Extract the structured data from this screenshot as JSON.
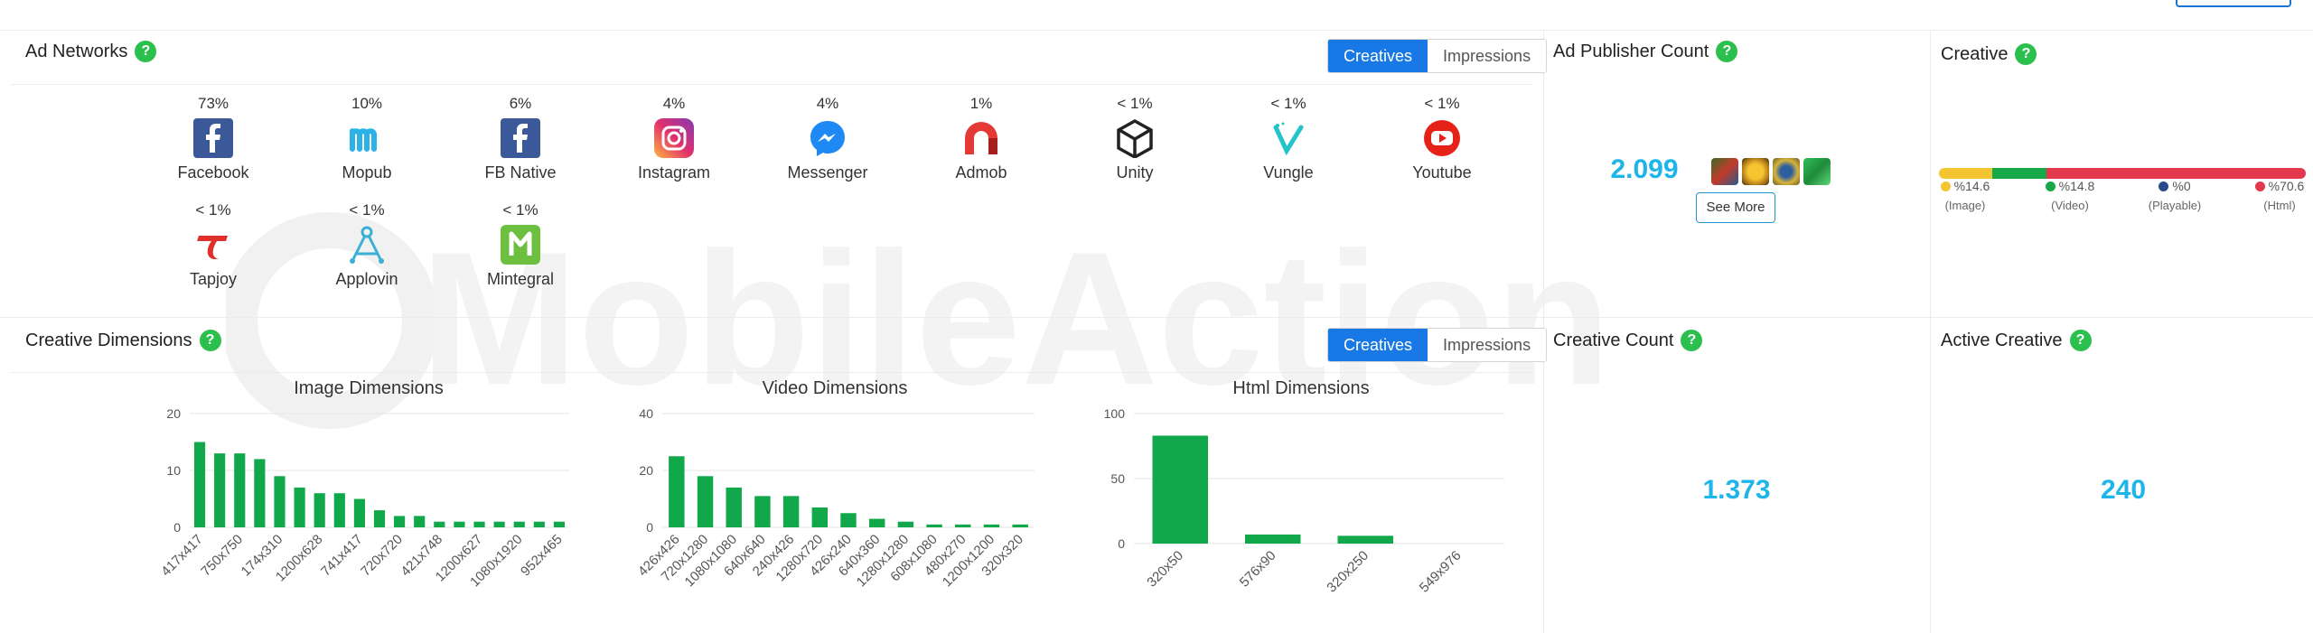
{
  "ad_networks": {
    "title": "Ad Networks",
    "help": "?",
    "toggle": {
      "creatives": "Creatives",
      "impressions": "Impressions"
    },
    "items": [
      {
        "pct": "73%",
        "label": "Facebook",
        "icon": "facebook-icon",
        "color": "#3b5998"
      },
      {
        "pct": "10%",
        "label": "Mopub",
        "icon": "mopub-icon",
        "color": "#2bb3e8"
      },
      {
        "pct": "6%",
        "label": "FB Native",
        "icon": "fb-native-icon",
        "color": "#3b5998"
      },
      {
        "pct": "4%",
        "label": "Instagram",
        "icon": "instagram-icon",
        "color": "#d6249f"
      },
      {
        "pct": "4%",
        "label": "Messenger",
        "icon": "messenger-icon",
        "color": "#1e88f5"
      },
      {
        "pct": "1%",
        "label": "Admob",
        "icon": "admob-icon",
        "color": "#e53935"
      },
      {
        "pct": "< 1%",
        "label": "Unity",
        "icon": "unity-icon",
        "color": "#222222"
      },
      {
        "pct": "< 1%",
        "label": "Vungle",
        "icon": "vungle-icon",
        "color": "#22c3c9"
      },
      {
        "pct": "< 1%",
        "label": "Youtube",
        "icon": "youtube-icon",
        "color": "#e62117"
      },
      {
        "pct": "< 1%",
        "label": "Tapjoy",
        "icon": "tapjoy-icon",
        "color": "#e0302b"
      },
      {
        "pct": "< 1%",
        "label": "Applovin",
        "icon": "applovin-icon",
        "color": "#3bb0d6"
      },
      {
        "pct": "< 1%",
        "label": "Mintegral",
        "icon": "mintegral-icon",
        "color": "#6cbf3f"
      }
    ]
  },
  "ad_publisher_count": {
    "title": "Ad Publisher Count",
    "help": "?",
    "value": "2.099",
    "see_more": "See More"
  },
  "creative": {
    "title": "Creative",
    "help": "?",
    "breakdown": [
      {
        "label": "%14.6",
        "type": "(Image)",
        "share": 14.6,
        "color": "#f5c431"
      },
      {
        "label": "%14.8",
        "type": "(Video)",
        "share": 14.8,
        "color": "#17a84a"
      },
      {
        "label": "%0",
        "type": "(Playable)",
        "share": 0,
        "color": "#2c4a8a"
      },
      {
        "label": "%70.6",
        "type": "(Html)",
        "share": 70.6,
        "color": "#e23a4c"
      }
    ]
  },
  "creative_dimensions": {
    "title": "Creative Dimensions",
    "help": "?",
    "toggle": {
      "creatives": "Creatives",
      "impressions": "Impressions"
    }
  },
  "creative_count": {
    "title": "Creative Count",
    "help": "?",
    "value": "1.373"
  },
  "active_creative": {
    "title": "Active Creative",
    "help": "?",
    "value": "240"
  },
  "chart_data": [
    {
      "type": "bar",
      "title": "Image Dimensions",
      "ylim": [
        0,
        20
      ],
      "yticks": [
        0,
        10,
        20
      ],
      "color": "#10a84a",
      "categories": [
        "417x417",
        "",
        "750x750",
        "",
        "174x310",
        "",
        "1200x628",
        "",
        "741x417",
        "",
        "720x720",
        "",
        "421x748",
        "",
        "1200x627",
        "",
        "1080x1920",
        "",
        "952x465"
      ],
      "values": [
        15,
        13,
        13,
        12,
        9,
        7,
        6,
        6,
        5,
        3,
        2,
        2,
        1,
        1,
        1,
        1,
        1,
        1,
        1
      ]
    },
    {
      "type": "bar",
      "title": "Video Dimensions",
      "ylim": [
        0,
        40
      ],
      "yticks": [
        0,
        20,
        40
      ],
      "color": "#10a84a",
      "categories": [
        "426x426",
        "720x1280",
        "1080x1080",
        "640x640",
        "240x426",
        "1280x720",
        "426x240",
        "640x360",
        "1280x1280",
        "608x1080",
        "480x270",
        "1200x1200",
        "320x320"
      ],
      "values": [
        25,
        18,
        14,
        11,
        11,
        7,
        5,
        3,
        2,
        1,
        1,
        1,
        1
      ]
    },
    {
      "type": "bar",
      "title": "Html Dimensions",
      "ylim": [
        0,
        100
      ],
      "yticks": [
        0,
        50,
        100
      ],
      "color": "#10a84a",
      "categories": [
        "320x50",
        "576x90",
        "320x250",
        "549x976"
      ],
      "values": [
        83,
        7,
        6,
        0
      ]
    }
  ]
}
